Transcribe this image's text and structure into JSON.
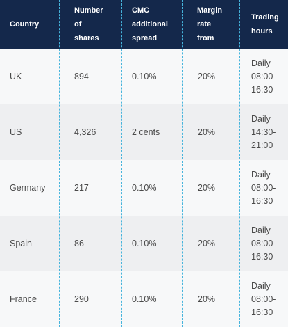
{
  "table": {
    "headers": [
      "Country",
      "Number\nof\nshares",
      "CMC\nadditional\nspread",
      "Margin\nrate\nfrom",
      "Trading\nhours"
    ],
    "rows": [
      {
        "country": "UK",
        "shares": "894",
        "spread": "0.10%",
        "margin": "20%",
        "hours": "Daily\n08:00-\n16:30"
      },
      {
        "country": "US",
        "shares": "4,326",
        "spread": "2 cents",
        "margin": "20%",
        "hours": "Daily\n14:30-\n21:00"
      },
      {
        "country": "Germany",
        "shares": "217",
        "spread": "0.10%",
        "margin": "20%",
        "hours": "Daily\n08:00-\n16:30"
      },
      {
        "country": "Spain",
        "shares": "86",
        "spread": "0.10%",
        "margin": "20%",
        "hours": "Daily\n08:00-\n16:30"
      },
      {
        "country": "France",
        "shares": "290",
        "spread": "0.10%",
        "margin": "20%",
        "hours": "Daily\n08:00-\n16:30"
      }
    ]
  },
  "colors": {
    "header_bg": "#14284b",
    "divider": "#46b4dc",
    "row_light": "#f7f8f9",
    "row_dark": "#eeeff1"
  }
}
